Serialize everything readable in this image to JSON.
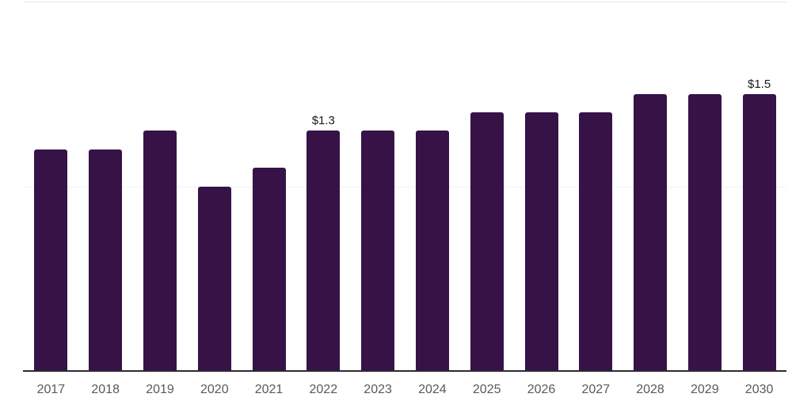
{
  "chart_data": {
    "type": "bar",
    "title": "",
    "categories": [
      "2017",
      "2018",
      "2019",
      "2020",
      "2021",
      "2022",
      "2023",
      "2024",
      "2025",
      "2026",
      "2027",
      "2028",
      "2029",
      "2030"
    ],
    "values": [
      1.2,
      1.2,
      1.3,
      1.0,
      1.1,
      1.3,
      1.3,
      1.3,
      1.4,
      1.4,
      1.4,
      1.5,
      1.5,
      1.5
    ],
    "data_labels": [
      "",
      "",
      "",
      "",
      "",
      "$1.3",
      "",
      "",
      "",
      "",
      "",
      "",
      "",
      "$1.5"
    ],
    "xlabel": "",
    "ylabel": "",
    "ylim": [
      0,
      2
    ],
    "y_axis_labels_visible": false,
    "legend": "none",
    "grid": "horizontal",
    "gridlines": [
      {
        "value": 1,
        "color": "#f2f2f2"
      },
      {
        "value": 2,
        "color": "#e7e7e7"
      }
    ],
    "colors": {
      "bar": "#361247",
      "axis_line": "#2b2b31",
      "tick_label": "#595959",
      "data_label": "#1a1a1a",
      "background": "#ffffff"
    }
  }
}
